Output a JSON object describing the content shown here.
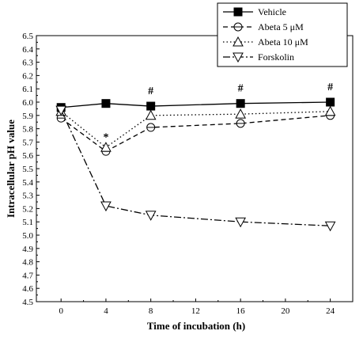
{
  "chart_data": {
    "type": "line",
    "xlabel": "Time of incubation (h)",
    "ylabel": "Intracellular pH value",
    "xlim": [
      -2.2,
      26
    ],
    "ylim": [
      4.5,
      6.5
    ],
    "xticks": [
      0,
      4,
      8,
      12,
      16,
      20,
      24
    ],
    "xtick_labels": [
      "0",
      "4",
      "8",
      "12",
      "16",
      "20",
      "24"
    ],
    "yticks": [
      4.5,
      4.6,
      4.7,
      4.8,
      4.9,
      5.0,
      5.1,
      5.2,
      5.3,
      5.4,
      5.5,
      5.6,
      5.7,
      5.8,
      5.9,
      6.0,
      6.1,
      6.2,
      6.3,
      6.4,
      6.5
    ],
    "ytick_labels": [
      "4.5",
      "4.6",
      "4.7",
      "4.8",
      "4.9",
      "5.0",
      "5.1",
      "5.2",
      "5.3",
      "5.4",
      "5.5",
      "5.6",
      "5.7",
      "5.8",
      "5.9",
      "6.0",
      "6.1",
      "6.2",
      "6.3",
      "6.4",
      "6.5"
    ],
    "grid": false,
    "legend_position": "top-right",
    "x": [
      0,
      4,
      8,
      16,
      24
    ],
    "series": [
      {
        "name": "Vehicle",
        "values": [
          5.96,
          5.99,
          5.97,
          5.99,
          6.0
        ],
        "marker": "filled-square",
        "dash": "solid",
        "color": "#000000"
      },
      {
        "name": "Abeta 5  μM",
        "values": [
          5.88,
          5.63,
          5.81,
          5.84,
          5.9
        ],
        "marker": "circle-with-bar",
        "dash": "dashed",
        "color": "#000000"
      },
      {
        "name": "Abeta 10 μM",
        "values": [
          5.93,
          5.66,
          5.9,
          5.91,
          5.93
        ],
        "marker": "triangle-up",
        "dash": "dotted",
        "color": "#000000"
      },
      {
        "name": "Forskolin",
        "values": [
          5.94,
          5.22,
          5.15,
          5.1,
          5.07
        ],
        "marker": "triangle-down",
        "dash": "dash-dot",
        "color": "#000000"
      }
    ],
    "annotations": [
      {
        "text": "*",
        "x": 4,
        "y": 5.74
      },
      {
        "text": "#",
        "x": 8,
        "y": 6.09
      },
      {
        "text": "#",
        "x": 16,
        "y": 6.11
      },
      {
        "text": "#",
        "x": 24,
        "y": 6.12
      }
    ]
  }
}
